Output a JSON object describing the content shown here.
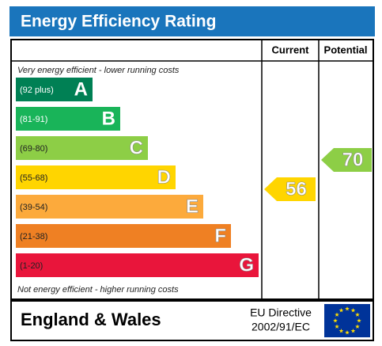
{
  "header": {
    "title": "Energy Efficiency Rating"
  },
  "columns": {
    "current": "Current",
    "potential": "Potential"
  },
  "top_note": "Very energy efficient - lower running costs",
  "bottom_note": "Not energy efficient - higher running costs",
  "bands": [
    {
      "range": "(92 plus)",
      "letter": "A",
      "color": "#008054"
    },
    {
      "range": "(81-91)",
      "letter": "B",
      "color": "#19b459"
    },
    {
      "range": "(69-80)",
      "letter": "C",
      "color": "#8dce46"
    },
    {
      "range": "(55-68)",
      "letter": "D",
      "color": "#ffd500"
    },
    {
      "range": "(39-54)",
      "letter": "E",
      "color": "#fcaa3c"
    },
    {
      "range": "(21-38)",
      "letter": "F",
      "color": "#ef8023"
    },
    {
      "range": "(1-20)",
      "letter": "G",
      "color": "#e9153b"
    }
  ],
  "current": 56,
  "potential": 70,
  "footer": {
    "region": "England & Wales",
    "directive_line1": "EU Directive",
    "directive_line2": "2002/91/EC"
  }
}
